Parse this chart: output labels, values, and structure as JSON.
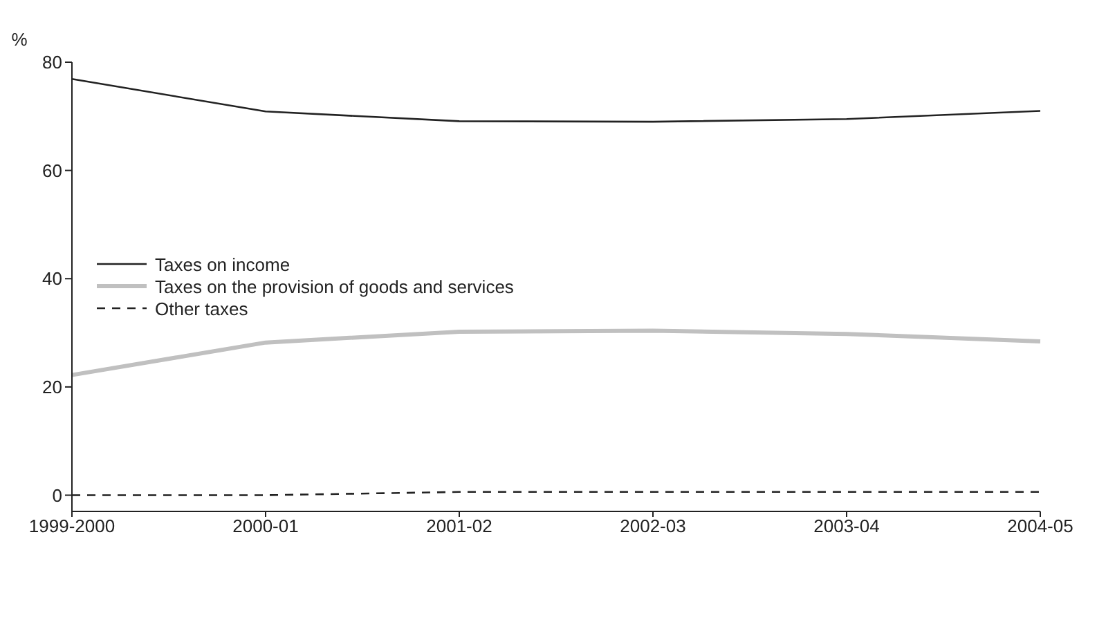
{
  "chart_data": {
    "type": "line",
    "ylabel": "%",
    "categories": [
      "1999-2000",
      "2000-01",
      "2001-02",
      "2002-03",
      "2003-04",
      "2004-05"
    ],
    "series": [
      {
        "name": "Taxes on income",
        "color": "#222222",
        "values": [
          76.9,
          70.9,
          69.1,
          69.0,
          69.5,
          71.0
        ]
      },
      {
        "name": "Taxes on the provision of goods and services",
        "color": "#c0c0c0",
        "values": [
          22.2,
          28.2,
          30.2,
          30.4,
          29.8,
          28.4
        ],
        "line_style": "solid"
      },
      {
        "name": "Other taxes",
        "color": "#222222",
        "values": [
          0.0,
          0.0,
          0.6,
          0.6,
          0.6,
          0.6
        ],
        "line_style": "dashed"
      }
    ],
    "ylim": [
      -3,
      80
    ],
    "yticks": [
      0,
      20,
      40,
      60,
      80
    ],
    "grid": false,
    "legend": "left",
    "marker": "none"
  }
}
